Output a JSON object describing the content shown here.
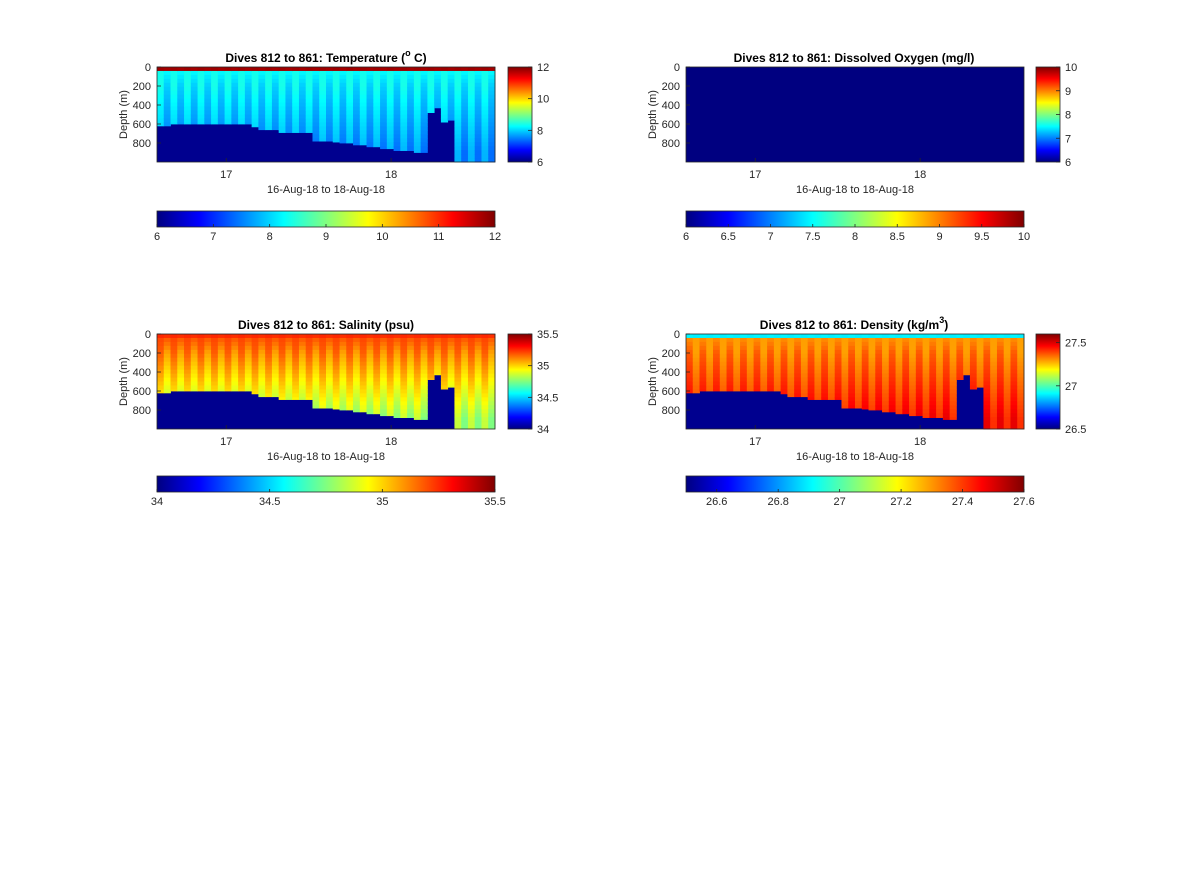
{
  "chart_data": [
    {
      "type": "heatmap",
      "title": "Dives 812 to 861: Temperature (",
      "title_sup": "o",
      "title_end": " C)",
      "xlabel": "16-Aug-18 to 18-Aug-18",
      "ylabel": "Depth (m)",
      "xticks": [
        "17",
        "18"
      ],
      "xtick_pos": [
        17,
        18
      ],
      "xlim": [
        16.58,
        18.63
      ],
      "yticks": [
        "0",
        "200",
        "400",
        "600",
        "800"
      ],
      "ylim": [
        0,
        1000
      ],
      "clim": [
        6,
        12
      ],
      "colorbar_right_ticks": [
        "6",
        "8",
        "10",
        "12"
      ],
      "colorbar_bottom_ticks": [
        "6",
        "7",
        "8",
        "9",
        "10",
        "11",
        "12"
      ],
      "colormap": "jet",
      "profiles": 50,
      "bottom_depth": [
        620,
        620,
        600,
        600,
        600,
        600,
        600,
        600,
        600,
        600,
        600,
        600,
        600,
        600,
        630,
        660,
        660,
        660,
        690,
        690,
        690,
        690,
        690,
        780,
        780,
        780,
        790,
        800,
        800,
        820,
        820,
        840,
        840,
        860,
        860,
        880,
        880,
        880,
        900,
        900,
        480,
        430,
        580,
        560,
        1000,
        1000,
        1000,
        1000,
        1000,
        1000
      ],
      "surface_value": 11.8,
      "mid_value": 8.3,
      "deep_value": 7.6
    },
    {
      "type": "heatmap",
      "title": "Dives 812 to 861: Dissolved Oxygen (mg/l)",
      "xlabel": "16-Aug-18 to 18-Aug-18",
      "ylabel": "Depth (m)",
      "xticks": [
        "17",
        "18"
      ],
      "xtick_pos": [
        17,
        18
      ],
      "xlim": [
        16.58,
        18.63
      ],
      "yticks": [
        "0",
        "200",
        "400",
        "600",
        "800"
      ],
      "ylim": [
        0,
        1000
      ],
      "clim": [
        6,
        10
      ],
      "colorbar_right_ticks": [
        "6",
        "7",
        "8",
        "9",
        "10"
      ],
      "colorbar_bottom_ticks": [
        "6",
        "6.5",
        "7",
        "7.5",
        "8",
        "8.5",
        "9",
        "9.5",
        "10"
      ],
      "colormap": "jet",
      "all_values": 6
    },
    {
      "type": "heatmap",
      "title": "Dives 812 to 861: Salinity (psu)",
      "xlabel": "16-Aug-18 to 18-Aug-18",
      "ylabel": "Depth (m)",
      "xticks": [
        "17",
        "18"
      ],
      "xtick_pos": [
        17,
        18
      ],
      "xlim": [
        16.58,
        18.63
      ],
      "yticks": [
        "0",
        "200",
        "400",
        "600",
        "800"
      ],
      "ylim": [
        0,
        1000
      ],
      "clim": [
        34,
        35.5
      ],
      "colorbar_right_ticks": [
        "34",
        "34.5",
        "35",
        "35.5"
      ],
      "colorbar_bottom_ticks": [
        "34",
        "34.5",
        "35",
        "35.5"
      ],
      "colormap": "jet",
      "profiles": 50,
      "bottom_depth": [
        620,
        620,
        600,
        600,
        600,
        600,
        600,
        600,
        600,
        600,
        600,
        600,
        600,
        600,
        630,
        660,
        660,
        660,
        690,
        690,
        690,
        690,
        690,
        780,
        780,
        780,
        790,
        800,
        800,
        820,
        820,
        840,
        840,
        860,
        860,
        880,
        880,
        880,
        900,
        900,
        480,
        430,
        580,
        560,
        1000,
        1000,
        1000,
        1000,
        1000,
        1000
      ],
      "surface_value": 35.25,
      "mid_value": 35.2,
      "deep_value": 34.8
    },
    {
      "type": "heatmap",
      "title": "Dives 812 to 861: Density (kg/m",
      "title_sup": "3",
      "title_end": ")",
      "xlabel": "16-Aug-18 to 18-Aug-18",
      "ylabel": "Depth (m)",
      "xticks": [
        "17",
        "18"
      ],
      "xtick_pos": [
        17,
        18
      ],
      "xlim": [
        16.58,
        18.63
      ],
      "yticks": [
        "0",
        "200",
        "400",
        "600",
        "800"
      ],
      "ylim": [
        0,
        1000
      ],
      "clim": [
        26.5,
        27.6
      ],
      "colorbar_right_ticks": [
        "26.5",
        "27",
        "27.5"
      ],
      "colorbar_bottom_ticks": [
        "26.6",
        "26.8",
        "27",
        "27.2",
        "27.4",
        "27.6"
      ],
      "colormap": "jet",
      "profiles": 50,
      "bottom_depth": [
        620,
        620,
        600,
        600,
        600,
        600,
        600,
        600,
        600,
        600,
        600,
        600,
        600,
        600,
        630,
        660,
        660,
        660,
        690,
        690,
        690,
        690,
        690,
        780,
        780,
        780,
        790,
        800,
        800,
        820,
        820,
        840,
        840,
        860,
        860,
        880,
        880,
        880,
        900,
        900,
        480,
        430,
        580,
        560,
        1000,
        1000,
        1000,
        1000,
        1000,
        1000
      ],
      "surface_value": 26.9,
      "mid_value": 27.3,
      "deep_value": 27.45
    }
  ]
}
